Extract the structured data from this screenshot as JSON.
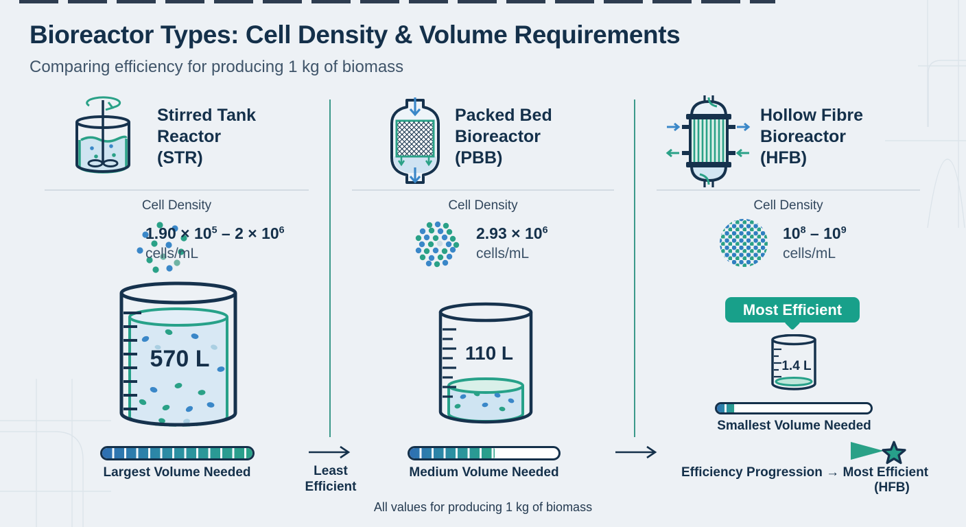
{
  "header": {
    "title": "Bioreactor Types: Cell Density & Volume Requirements",
    "subtitle": "Comparing efficiency for producing 1 kg of biomass"
  },
  "colors": {
    "navy": "#14304a",
    "teal": "#18a08a",
    "blue": "#2e6fb3",
    "liquid_blue": "#d8e8f4"
  },
  "reactors": [
    {
      "name": "Stirred Tank Reactor (STR)",
      "icon": "stirred-tank-reactor-icon",
      "title_lines": [
        "Stirred Tank",
        "Reactor",
        "(STR)"
      ],
      "cell_density": {
        "label": "Cell Density",
        "value_base1": "1.90 × 10",
        "value_exp1": "5",
        "value_mid": " – 2 × 10",
        "value_exp2": "6",
        "unit": "cells/mL",
        "dot_density": "low"
      },
      "volume_label": "570 L",
      "beaker_fill_percent": 90,
      "bar": {
        "fill_percent": 100,
        "label": "Largest Volume Needed"
      }
    },
    {
      "name": "Packed Bed Bioreactor (PBB)",
      "icon": "packed-bed-bioreactor-icon",
      "title_lines": [
        "Packed Bed",
        "Bioreactor",
        "(PBB)"
      ],
      "cell_density": {
        "label": "Cell Density",
        "value_base1": "2.93 × 10",
        "value_exp1": "6",
        "value_mid": "",
        "value_exp2": "",
        "unit": "cells/mL",
        "dot_density": "medium"
      },
      "volume_label": "110 L",
      "beaker_fill_percent": 25,
      "bar": {
        "fill_percent": 57,
        "label": "Medium Volume Needed"
      }
    },
    {
      "name": "Hollow Fibre Bioreactor (HFB)",
      "icon": "hollow-fibre-bioreactor-icon",
      "title_lines": [
        "Hollow Fibre",
        "Bioreactor",
        "(HFB)"
      ],
      "cell_density": {
        "label": "Cell Density",
        "value_base1": "10",
        "value_exp1": "8",
        "value_mid": " – 10",
        "value_exp2": "9",
        "unit": "cells/mL",
        "dot_density": "high"
      },
      "badge": "Most Efficient",
      "volume_label": "1.4 L",
      "beaker_fill_percent": 8,
      "bar": {
        "fill_percent": 12,
        "label": "Smallest Volume Needed"
      }
    }
  ],
  "flow": {
    "arrow1_label_line1": "Least",
    "arrow1_label_line2": "Efficient",
    "progression_label": "Efficiency Progression → Most Efficient",
    "progression_sub_label": "(HFB)",
    "star_icon": "star-icon"
  },
  "footer": "All values for producing 1 kg of biomass"
}
